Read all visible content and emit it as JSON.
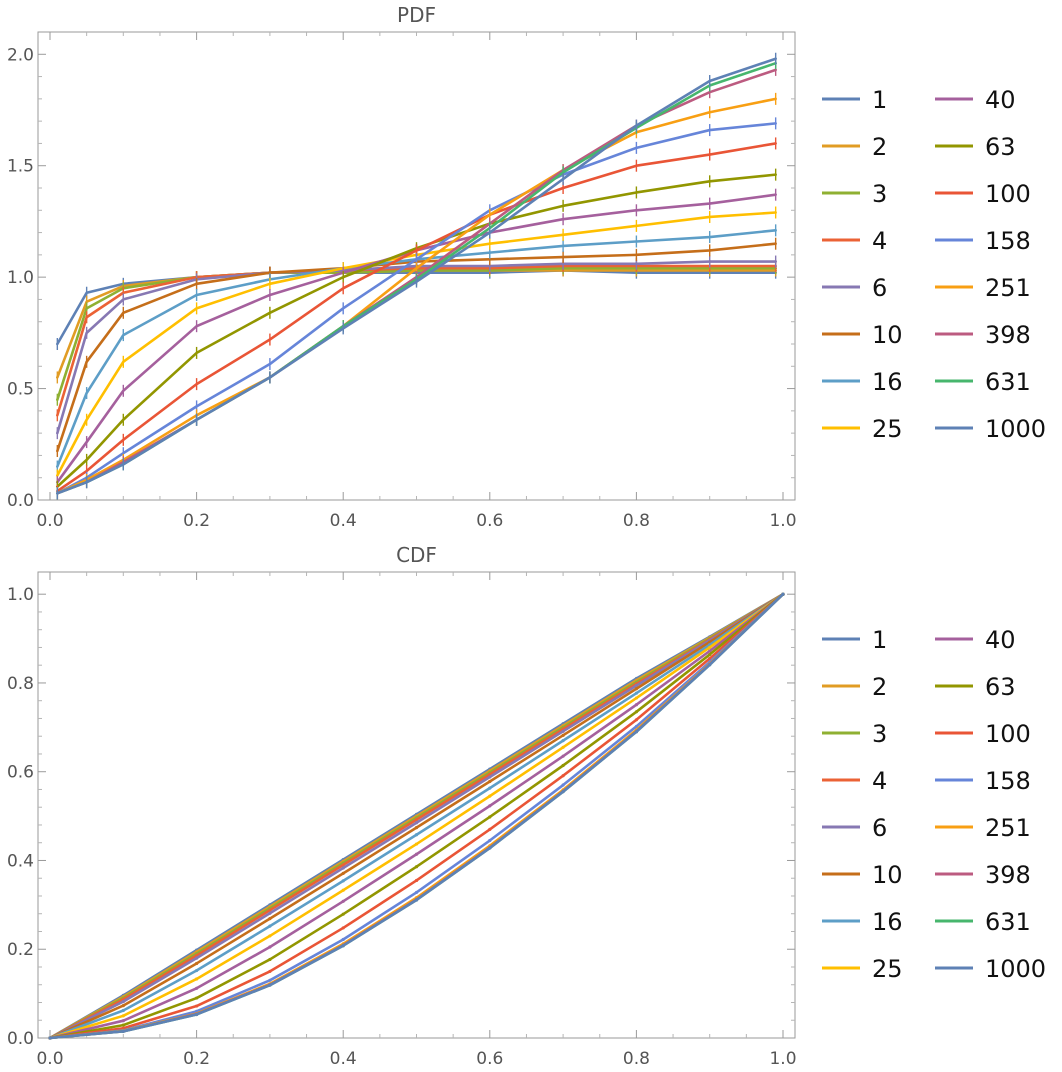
{
  "chart_data": [
    {
      "type": "line",
      "title": "PDF",
      "xlabel": "",
      "ylabel": "",
      "xlim": [
        0,
        1
      ],
      "ylim": [
        0,
        2.1
      ],
      "xticks": [
        "0.0",
        "0.2",
        "0.4",
        "0.6",
        "0.8",
        "1.0"
      ],
      "yticks": [
        "0.0",
        "0.5",
        "1.0",
        "1.5",
        "2.0"
      ],
      "error_bars": true,
      "x": [
        0.01,
        0.05,
        0.1,
        0.2,
        0.3,
        0.4,
        0.5,
        0.6,
        0.7,
        0.8,
        0.9,
        0.99
      ],
      "series": [
        {
          "name": "1",
          "color": "#5E81B5",
          "values": [
            0.7,
            0.93,
            0.97,
            1.0,
            1.02,
            1.02,
            1.02,
            1.02,
            1.03,
            1.02,
            1.02,
            1.02
          ]
        },
        {
          "name": "2",
          "color": "#E19C24",
          "values": [
            0.55,
            0.89,
            0.96,
            1.0,
            1.02,
            1.02,
            1.03,
            1.03,
            1.03,
            1.03,
            1.03,
            1.03
          ]
        },
        {
          "name": "3",
          "color": "#8FB032",
          "values": [
            0.45,
            0.86,
            0.95,
            1.0,
            1.02,
            1.02,
            1.03,
            1.03,
            1.04,
            1.04,
            1.04,
            1.04
          ]
        },
        {
          "name": "4",
          "color": "#EB6235",
          "values": [
            0.38,
            0.82,
            0.93,
            1.0,
            1.02,
            1.03,
            1.04,
            1.04,
            1.05,
            1.05,
            1.05,
            1.05
          ]
        },
        {
          "name": "6",
          "color": "#8778B3",
          "values": [
            0.3,
            0.75,
            0.9,
            0.99,
            1.02,
            1.03,
            1.05,
            1.05,
            1.06,
            1.06,
            1.07,
            1.07
          ]
        },
        {
          "name": "10",
          "color": "#C56E1A",
          "values": [
            0.22,
            0.62,
            0.84,
            0.97,
            1.02,
            1.04,
            1.07,
            1.08,
            1.09,
            1.1,
            1.12,
            1.15
          ]
        },
        {
          "name": "16",
          "color": "#5D9EC7",
          "values": [
            0.15,
            0.48,
            0.74,
            0.92,
            0.99,
            1.04,
            1.08,
            1.11,
            1.14,
            1.16,
            1.18,
            1.21
          ]
        },
        {
          "name": "25",
          "color": "#FFBF00",
          "values": [
            0.11,
            0.36,
            0.62,
            0.86,
            0.97,
            1.04,
            1.1,
            1.15,
            1.19,
            1.23,
            1.27,
            1.29
          ]
        },
        {
          "name": "40",
          "color": "#A5609D",
          "values": [
            0.08,
            0.26,
            0.49,
            0.78,
            0.92,
            1.02,
            1.12,
            1.2,
            1.26,
            1.3,
            1.33,
            1.37
          ]
        },
        {
          "name": "63",
          "color": "#929600",
          "values": [
            0.06,
            0.18,
            0.36,
            0.66,
            0.84,
            1.0,
            1.13,
            1.24,
            1.32,
            1.38,
            1.43,
            1.46
          ]
        },
        {
          "name": "100",
          "color": "#E95536",
          "values": [
            0.04,
            0.13,
            0.27,
            0.52,
            0.72,
            0.95,
            1.12,
            1.28,
            1.4,
            1.5,
            1.55,
            1.6
          ]
        },
        {
          "name": "158",
          "color": "#6685D9",
          "values": [
            0.03,
            0.1,
            0.21,
            0.42,
            0.61,
            0.86,
            1.08,
            1.3,
            1.46,
            1.58,
            1.66,
            1.69
          ]
        },
        {
          "name": "251",
          "color": "#F89F13",
          "values": [
            0.03,
            0.09,
            0.18,
            0.38,
            0.55,
            0.78,
            1.04,
            1.28,
            1.48,
            1.65,
            1.74,
            1.8
          ]
        },
        {
          "name": "398",
          "color": "#BC5B80",
          "values": [
            0.03,
            0.08,
            0.17,
            0.36,
            0.55,
            0.78,
            1.0,
            1.24,
            1.48,
            1.68,
            1.83,
            1.93
          ]
        },
        {
          "name": "631",
          "color": "#47B66D",
          "values": [
            0.03,
            0.08,
            0.16,
            0.36,
            0.55,
            0.78,
            0.99,
            1.22,
            1.47,
            1.67,
            1.86,
            1.96
          ]
        },
        {
          "name": "1000",
          "color": "#5E81B5",
          "values": [
            0.03,
            0.08,
            0.16,
            0.36,
            0.55,
            0.77,
            0.98,
            1.2,
            1.44,
            1.68,
            1.88,
            1.98
          ]
        }
      ]
    },
    {
      "type": "line",
      "title": "CDF",
      "xlabel": "",
      "ylabel": "",
      "xlim": [
        0,
        1
      ],
      "ylim": [
        0,
        1.05
      ],
      "xticks": [
        "0.0",
        "0.2",
        "0.4",
        "0.6",
        "0.8",
        "1.0"
      ],
      "yticks": [
        "0.0",
        "0.2",
        "0.4",
        "0.6",
        "0.8",
        "1.0"
      ],
      "x": [
        0,
        0.1,
        0.2,
        0.3,
        0.4,
        0.5,
        0.6,
        0.7,
        0.8,
        0.9,
        1.0
      ],
      "series": [
        {
          "name": "1",
          "color": "#5E81B5",
          "values": [
            0,
            0.096,
            0.198,
            0.3,
            0.402,
            0.504,
            0.606,
            0.708,
            0.81,
            0.904,
            1.0
          ]
        },
        {
          "name": "2",
          "color": "#E19C24",
          "values": [
            0,
            0.093,
            0.194,
            0.296,
            0.398,
            0.5,
            0.602,
            0.704,
            0.806,
            0.902,
            1.0
          ]
        },
        {
          "name": "3",
          "color": "#8FB032",
          "values": [
            0,
            0.09,
            0.19,
            0.292,
            0.394,
            0.496,
            0.598,
            0.7,
            0.802,
            0.9,
            1.0
          ]
        },
        {
          "name": "4",
          "color": "#EB6235",
          "values": [
            0,
            0.087,
            0.186,
            0.288,
            0.39,
            0.492,
            0.594,
            0.696,
            0.798,
            0.898,
            1.0
          ]
        },
        {
          "name": "6",
          "color": "#8778B3",
          "values": [
            0,
            0.082,
            0.18,
            0.281,
            0.383,
            0.485,
            0.588,
            0.691,
            0.794,
            0.896,
            1.0
          ]
        },
        {
          "name": "10",
          "color": "#C56E1A",
          "values": [
            0,
            0.073,
            0.168,
            0.269,
            0.371,
            0.474,
            0.578,
            0.682,
            0.787,
            0.892,
            1.0
          ]
        },
        {
          "name": "16",
          "color": "#5D9EC7",
          "values": [
            0,
            0.062,
            0.152,
            0.252,
            0.354,
            0.458,
            0.563,
            0.67,
            0.777,
            0.886,
            1.0
          ]
        },
        {
          "name": "25",
          "color": "#FFBF00",
          "values": [
            0,
            0.05,
            0.133,
            0.23,
            0.333,
            0.437,
            0.545,
            0.655,
            0.766,
            0.88,
            1.0
          ]
        },
        {
          "name": "40",
          "color": "#A5609D",
          "values": [
            0,
            0.039,
            0.112,
            0.205,
            0.308,
            0.414,
            0.523,
            0.635,
            0.751,
            0.872,
            1.0
          ]
        },
        {
          "name": "63",
          "color": "#929600",
          "values": [
            0,
            0.029,
            0.09,
            0.177,
            0.279,
            0.386,
            0.498,
            0.614,
            0.735,
            0.864,
            1.0
          ]
        },
        {
          "name": "100",
          "color": "#E95536",
          "values": [
            0,
            0.022,
            0.072,
            0.15,
            0.248,
            0.355,
            0.47,
            0.591,
            0.717,
            0.855,
            1.0
          ]
        },
        {
          "name": "158",
          "color": "#6685D9",
          "values": [
            0,
            0.017,
            0.06,
            0.13,
            0.222,
            0.328,
            0.445,
            0.57,
            0.702,
            0.847,
            1.0
          ]
        },
        {
          "name": "251",
          "color": "#F89F13",
          "values": [
            0,
            0.016,
            0.055,
            0.122,
            0.212,
            0.316,
            0.433,
            0.559,
            0.694,
            0.843,
            1.0
          ]
        },
        {
          "name": "398",
          "color": "#BC5B80",
          "values": [
            0,
            0.015,
            0.054,
            0.12,
            0.209,
            0.312,
            0.429,
            0.556,
            0.691,
            0.842,
            1.0
          ]
        },
        {
          "name": "631",
          "color": "#47B66D",
          "values": [
            0,
            0.015,
            0.053,
            0.119,
            0.208,
            0.311,
            0.428,
            0.555,
            0.69,
            0.841,
            1.0
          ]
        },
        {
          "name": "1000",
          "color": "#5E81B5",
          "values": [
            0,
            0.015,
            0.053,
            0.119,
            0.208,
            0.311,
            0.428,
            0.555,
            0.69,
            0.841,
            1.0
          ]
        }
      ]
    }
  ]
}
